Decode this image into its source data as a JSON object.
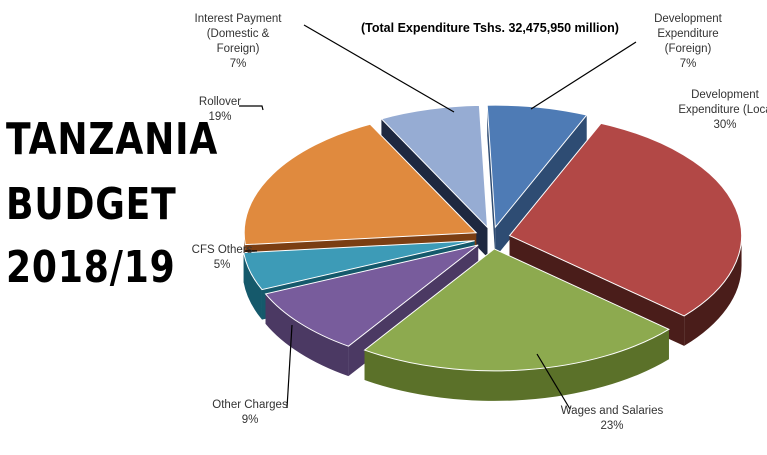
{
  "headline": {
    "line1": "TANZANIA",
    "line2": "BUDGET",
    "line3": "2018/19"
  },
  "chart_data": {
    "type": "pie",
    "title": "(Total Expenditure Tshs. 32,475,950 million)",
    "three_d": true,
    "exploded": true,
    "unit": "%",
    "slices": [
      {
        "label_lines": [
          "Development",
          "Expenditure",
          "(Foreign)"
        ],
        "value": 7,
        "value_label": "7%",
        "color": "#4e7bb5",
        "side_color": "#2e4c73"
      },
      {
        "label_lines": [
          "Development",
          "Expenditure (Loca"
        ],
        "value": 30,
        "value_label": "30%",
        "color": "#b24846",
        "side_color": "#4a1d1a"
      },
      {
        "label_lines": [
          "Wages and Salaries"
        ],
        "value": 23,
        "value_label": "23%",
        "color": "#8daa4f",
        "side_color": "#5b7129"
      },
      {
        "label_lines": [
          "Other Charges"
        ],
        "value": 9,
        "value_label": "9%",
        "color": "#785c9c",
        "side_color": "#4b3963"
      },
      {
        "label_lines": [
          "CFS Others"
        ],
        "value": 5,
        "value_label": "5%",
        "color": "#3d9bb7",
        "side_color": "#15596b"
      },
      {
        "label_lines": [
          "Rollover"
        ],
        "value": 19,
        "value_label": "19%",
        "color": "#e08a3e",
        "side_color": "#7b3e13"
      },
      {
        "label_lines": [
          "Interest Payment",
          "(Domestic &",
          "Foreign)"
        ],
        "value": 7,
        "value_label": "7%",
        "color": "#96acd3",
        "side_color": "#1e2840"
      }
    ]
  }
}
